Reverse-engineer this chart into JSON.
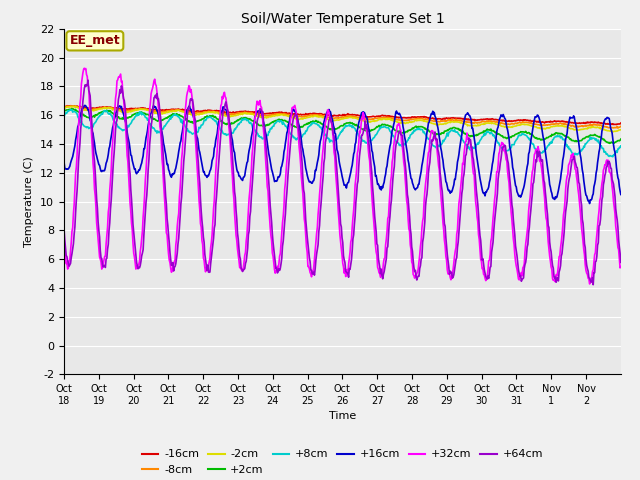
{
  "title": "Soil/Water Temperature Set 1",
  "xlabel": "Time",
  "ylabel": "Temperature (C)",
  "ylim": [
    -2,
    22
  ],
  "annotation": "EE_met",
  "plot_bg": "#e8e8e8",
  "fig_bg": "#f0f0f0",
  "series": {
    "-16cm": {
      "color": "#dd0000",
      "lw": 1.2
    },
    "-8cm": {
      "color": "#ff8800",
      "lw": 1.2
    },
    "-2cm": {
      "color": "#dddd00",
      "lw": 1.2
    },
    "+2cm": {
      "color": "#00bb00",
      "lw": 1.2
    },
    "+8cm": {
      "color": "#00cccc",
      "lw": 1.2
    },
    "+16cm": {
      "color": "#0000cc",
      "lw": 1.2
    },
    "+32cm": {
      "color": "#ff00ff",
      "lw": 1.2
    },
    "+64cm": {
      "color": "#9900cc",
      "lw": 1.2
    }
  },
  "xtick_labels": [
    "Oct 18",
    "Oct 19",
    "Oct 20",
    "Oct 21",
    "Oct 22",
    "Oct 23",
    "Oct 24",
    "Oct 25",
    "Oct 26",
    "Oct 27",
    "Oct 28",
    "Oct 29",
    "Oct 30",
    "Oct 31",
    "Nov 1",
    "Nov 2"
  ],
  "n_days": 16,
  "pts_per_day": 48,
  "grid_color": "#ffffff",
  "annot_facecolor": "#ffffcc",
  "annot_edgecolor": "#aaaa00",
  "annot_textcolor": "#880000"
}
